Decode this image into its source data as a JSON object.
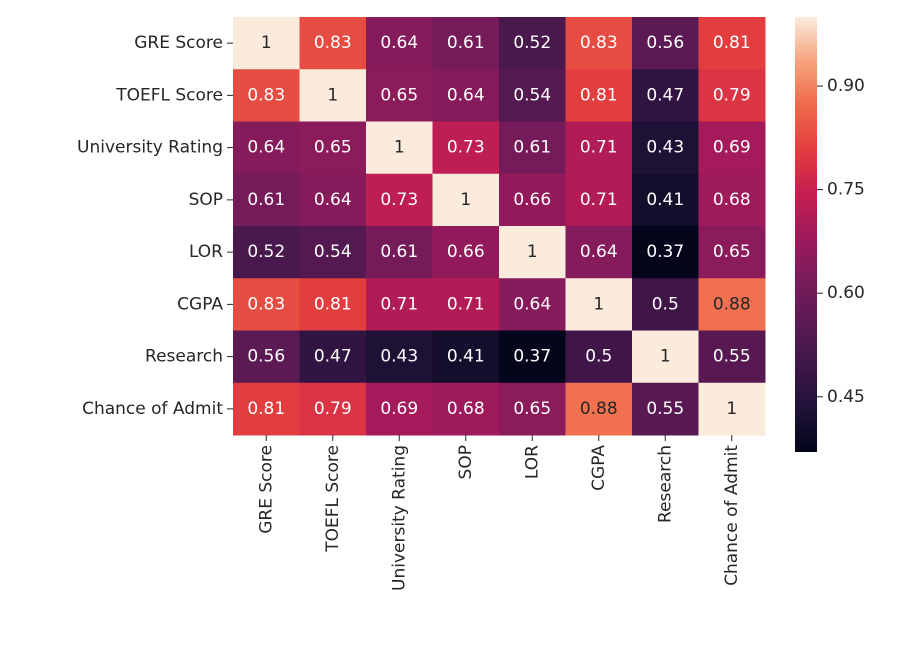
{
  "chart_data": {
    "type": "heatmap",
    "title": "",
    "xlabel": "",
    "ylabel": "",
    "labels": [
      "GRE Score",
      "TOEFL Score",
      "University Rating",
      "SOP",
      "LOR",
      "CGPA",
      "Research",
      "Chance of Admit"
    ],
    "values": [
      [
        1,
        0.83,
        0.64,
        0.61,
        0.52,
        0.83,
        0.56,
        0.81
      ],
      [
        0.83,
        1,
        0.65,
        0.64,
        0.54,
        0.81,
        0.47,
        0.79
      ],
      [
        0.64,
        0.65,
        1,
        0.73,
        0.61,
        0.71,
        0.43,
        0.69
      ],
      [
        0.61,
        0.64,
        0.73,
        1,
        0.66,
        0.71,
        0.41,
        0.68
      ],
      [
        0.52,
        0.54,
        0.61,
        0.66,
        1,
        0.64,
        0.37,
        0.65
      ],
      [
        0.83,
        0.81,
        0.71,
        0.71,
        0.64,
        1,
        0.5,
        0.88
      ],
      [
        0.56,
        0.47,
        0.43,
        0.41,
        0.37,
        0.5,
        1,
        0.55
      ],
      [
        0.81,
        0.79,
        0.69,
        0.68,
        0.65,
        0.88,
        0.55,
        1
      ]
    ],
    "annotations": [
      [
        "1",
        "0.83",
        "0.64",
        "0.61",
        "0.52",
        "0.83",
        "0.56",
        "0.81"
      ],
      [
        "0.83",
        "1",
        "0.65",
        "0.64",
        "0.54",
        "0.81",
        "0.47",
        "0.79"
      ],
      [
        "0.64",
        "0.65",
        "1",
        "0.73",
        "0.61",
        "0.71",
        "0.43",
        "0.69"
      ],
      [
        "0.61",
        "0.64",
        "0.73",
        "1",
        "0.66",
        "0.71",
        "0.41",
        "0.68"
      ],
      [
        "0.52",
        "0.54",
        "0.61",
        "0.66",
        "1",
        "0.64",
        "0.37",
        "0.65"
      ],
      [
        "0.83",
        "0.81",
        "0.71",
        "0.71",
        "0.64",
        "1",
        "0.5",
        "0.88"
      ],
      [
        "0.56",
        "0.47",
        "0.43",
        "0.41",
        "0.37",
        "0.5",
        "1",
        "0.55"
      ],
      [
        "0.81",
        "0.79",
        "0.69",
        "0.68",
        "0.65",
        "0.88",
        "0.55",
        "1"
      ]
    ],
    "colorscale": "rocket",
    "color_range": [
      0.37,
      1.0
    ],
    "colorbar": {
      "ticks": [
        0.45,
        0.6,
        0.75,
        0.9
      ],
      "tick_labels": [
        "0.45",
        "0.60",
        "0.75",
        "0.90"
      ]
    }
  },
  "colormap_stops": [
    [
      0.0,
      "#03051a"
    ],
    [
      0.1,
      "#1f1237"
    ],
    [
      0.2,
      "#3e1648"
    ],
    [
      0.3,
      "#5c1a54"
    ],
    [
      0.4,
      "#7b1b5b"
    ],
    [
      0.5,
      "#a11a5b"
    ],
    [
      0.6,
      "#c91f50"
    ],
    [
      0.7,
      "#e33f3f"
    ],
    [
      0.8,
      "#ef6b4b"
    ],
    [
      0.9,
      "#f6a47e"
    ],
    [
      1.0,
      "#faebdd"
    ]
  ]
}
